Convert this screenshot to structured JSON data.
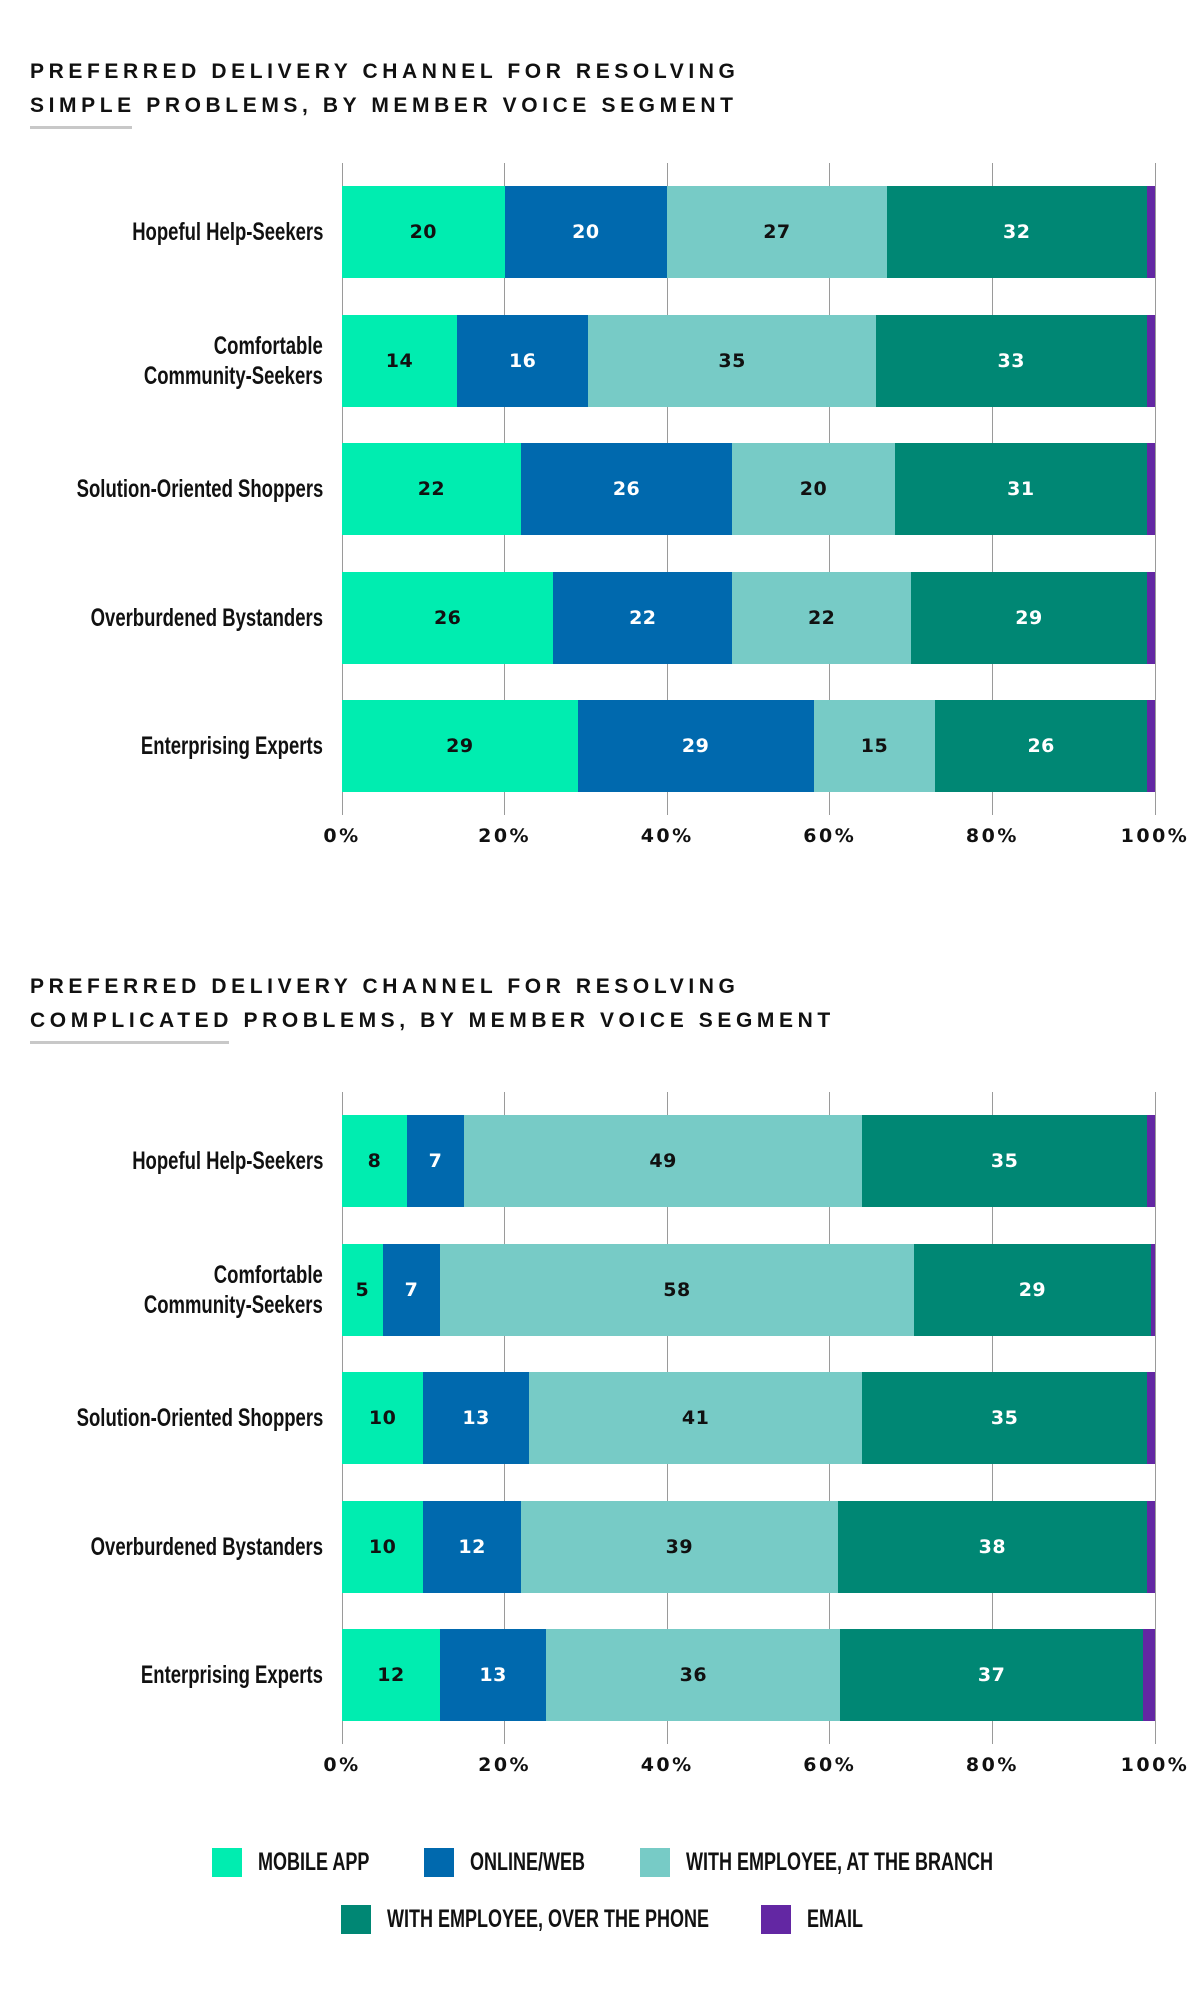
{
  "series_colors": {
    "mobile_app": "#00EDB0",
    "online_web": "#0069AE",
    "branch": "#77CBC6",
    "phone": "#008774",
    "email": "#6327A3"
  },
  "label_colors": {
    "mobile_app": "#111111",
    "online_web": "#ffffff",
    "branch": "#111111",
    "phone": "#ffffff",
    "email": "#ffffff"
  },
  "legend": {
    "items": [
      {
        "key": "mobile_app",
        "label": "MOBILE APP"
      },
      {
        "key": "online_web",
        "label": "ONLINE/WEB"
      },
      {
        "key": "branch",
        "label": "WITH EMPLOYEE, AT THE BRANCH"
      },
      {
        "key": "phone",
        "label": "WITH EMPLOYEE, OVER THE PHONE"
      },
      {
        "key": "email",
        "label": "EMAIL"
      }
    ]
  },
  "chart_data": [
    {
      "type": "bar",
      "orientation": "horizontal-stacked",
      "title": {
        "line1": "PREFERRED DELIVERY CHANNEL FOR RESOLVING",
        "line2_emphasis": "SIMPLE",
        "line2_rest": " PROBLEMS, BY MEMBER VOICE SEGMENT"
      },
      "categories": [
        [
          "Hopeful Help-Seekers"
        ],
        [
          "Comfortable",
          "Community-Seekers"
        ],
        [
          "Solution-Oriented Shoppers"
        ],
        [
          "Overburdened Bystanders"
        ],
        [
          "Enterprising Experts"
        ]
      ],
      "series": [
        {
          "key": "mobile_app",
          "name": "MOBILE APP",
          "values": [
            20,
            14,
            22,
            26,
            29
          ]
        },
        {
          "key": "online_web",
          "name": "ONLINE/WEB",
          "values": [
            20,
            16,
            26,
            22,
            29
          ]
        },
        {
          "key": "branch",
          "name": "WITH EMPLOYEE, AT THE BRANCH",
          "values": [
            27,
            35,
            20,
            22,
            15
          ]
        },
        {
          "key": "phone",
          "name": "WITH EMPLOYEE, OVER THE PHONE",
          "values": [
            32,
            33,
            31,
            29,
            26
          ]
        },
        {
          "key": "email",
          "name": "EMAIL",
          "values": [
            1,
            1,
            1,
            1,
            1
          ],
          "labeled": false
        }
      ],
      "xlim": [
        0,
        100
      ],
      "xticks": [
        "0%",
        "20%",
        "40%",
        "60%",
        "80%",
        "100%"
      ],
      "grid": true,
      "legend_position": "bottom"
    },
    {
      "type": "bar",
      "orientation": "horizontal-stacked",
      "title": {
        "line1": "PREFERRED DELIVERY CHANNEL FOR RESOLVING",
        "line2_emphasis": "COMPLICATED",
        "line2_rest": " PROBLEMS, BY MEMBER VOICE SEGMENT"
      },
      "categories": [
        [
          "Hopeful Help-Seekers"
        ],
        [
          "Comfortable",
          "Community-Seekers"
        ],
        [
          "Solution-Oriented Shoppers"
        ],
        [
          "Overburdened Bystanders"
        ],
        [
          "Enterprising Experts"
        ]
      ],
      "series": [
        {
          "key": "mobile_app",
          "name": "MOBILE APP",
          "values": [
            8,
            5,
            10,
            10,
            12
          ]
        },
        {
          "key": "online_web",
          "name": "ONLINE/WEB",
          "values": [
            7,
            7,
            13,
            12,
            13
          ]
        },
        {
          "key": "branch",
          "name": "WITH EMPLOYEE, AT THE BRANCH",
          "values": [
            49,
            58,
            41,
            39,
            36
          ]
        },
        {
          "key": "phone",
          "name": "WITH EMPLOYEE, OVER THE PHONE",
          "values": [
            35,
            29,
            35,
            38,
            37
          ]
        },
        {
          "key": "email",
          "name": "EMAIL",
          "values": [
            1,
            0.5,
            1,
            1,
            1.5
          ],
          "labeled": false
        }
      ],
      "xlim": [
        0,
        100
      ],
      "xticks": [
        "0%",
        "20%",
        "40%",
        "60%",
        "80%",
        "100%"
      ],
      "grid": true,
      "legend_position": "bottom"
    }
  ]
}
